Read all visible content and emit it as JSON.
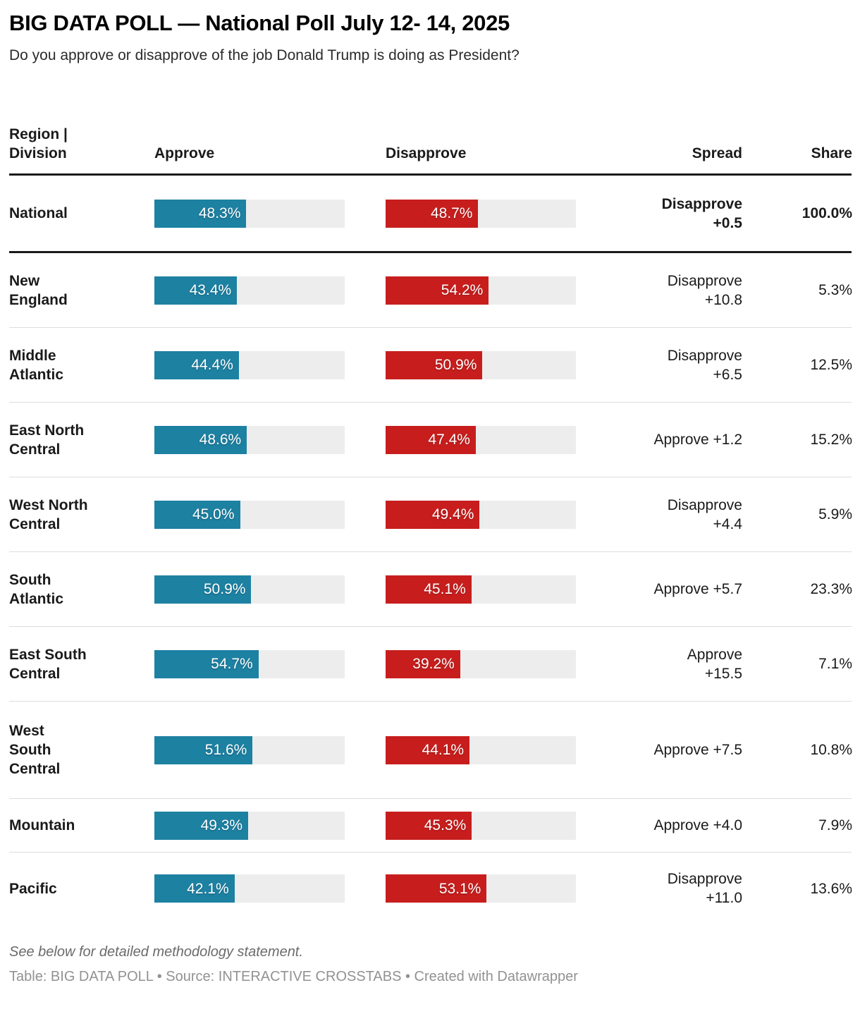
{
  "header": {
    "title": "BIG DATA POLL — National Poll July 12- 14, 2025",
    "subtitle": "Do you approve or disapprove of the job Donald Trump is doing as President?"
  },
  "colors": {
    "approve": "#1d81a2",
    "disapprove": "#c71e1d",
    "bar-track": "#ededed",
    "divider": "#dddddd",
    "rule": "#1a1a1a",
    "text": "#1a1a1a",
    "muted": "#6b6b6b",
    "source": "#929292"
  },
  "table": {
    "columns": [
      "Region |\nDivision",
      "Approve",
      "Disapprove",
      "Spread",
      "Share"
    ],
    "rows": [
      {
        "label": "National",
        "approve_pct": 48.3,
        "approve_text": "48.3%",
        "disapprove_pct": 48.7,
        "disapprove_text": "48.7%",
        "spread": "Disapprove\n+0.5",
        "share": "100.0%"
      },
      {
        "label": "New\nEngland",
        "approve_pct": 43.4,
        "approve_text": "43.4%",
        "disapprove_pct": 54.2,
        "disapprove_text": "54.2%",
        "spread": "Disapprove\n+10.8",
        "share": "5.3%"
      },
      {
        "label": "Middle\nAtlantic",
        "approve_pct": 44.4,
        "approve_text": "44.4%",
        "disapprove_pct": 50.9,
        "disapprove_text": "50.9%",
        "spread": "Disapprove\n+6.5",
        "share": "12.5%"
      },
      {
        "label": "East North\nCentral",
        "approve_pct": 48.6,
        "approve_text": "48.6%",
        "disapprove_pct": 47.4,
        "disapprove_text": "47.4%",
        "spread": "Approve +1.2",
        "share": "15.2%"
      },
      {
        "label": "West North\nCentral",
        "approve_pct": 45.0,
        "approve_text": "45.0%",
        "disapprove_pct": 49.4,
        "disapprove_text": "49.4%",
        "spread": "Disapprove\n+4.4",
        "share": "5.9%"
      },
      {
        "label": "South\nAtlantic",
        "approve_pct": 50.9,
        "approve_text": "50.9%",
        "disapprove_pct": 45.1,
        "disapprove_text": "45.1%",
        "spread": "Approve +5.7",
        "share": "23.3%"
      },
      {
        "label": "East South\nCentral",
        "approve_pct": 54.7,
        "approve_text": "54.7%",
        "disapprove_pct": 39.2,
        "disapprove_text": "39.2%",
        "spread": "Approve\n+15.5",
        "share": "7.1%"
      },
      {
        "label": "West\nSouth\nCentral",
        "approve_pct": 51.6,
        "approve_text": "51.6%",
        "disapprove_pct": 44.1,
        "disapprove_text": "44.1%",
        "spread": "Approve +7.5",
        "share": "10.8%"
      },
      {
        "label": "Mountain",
        "approve_pct": 49.3,
        "approve_text": "49.3%",
        "disapprove_pct": 45.3,
        "disapprove_text": "45.3%",
        "spread": "Approve +4.0",
        "share": "7.9%"
      },
      {
        "label": "Pacific",
        "approve_pct": 42.1,
        "approve_text": "42.1%",
        "disapprove_pct": 53.1,
        "disapprove_text": "53.1%",
        "spread": "Disapprove\n+11.0",
        "share": "13.6%"
      }
    ]
  },
  "footer": {
    "methodology": "See below for detailed methodology statement.",
    "source": "Table: BIG DATA POLL • Source: INTERACTIVE CROSSTABS • Created with Datawrapper"
  },
  "chart_data": {
    "type": "table",
    "title": "BIG DATA POLL — National Poll July 12- 14, 2025",
    "subtitle": "Do you approve or disapprove of the job Donald Trump is doing as President?",
    "categories": [
      "National",
      "New England",
      "Middle Atlantic",
      "East North Central",
      "West North Central",
      "South Atlantic",
      "East South Central",
      "West South Central",
      "Mountain",
      "Pacific"
    ],
    "series": [
      {
        "name": "Approve",
        "values": [
          48.3,
          43.4,
          44.4,
          48.6,
          45.0,
          50.9,
          54.7,
          51.6,
          49.3,
          42.1
        ]
      },
      {
        "name": "Disapprove",
        "values": [
          48.7,
          54.2,
          50.9,
          47.4,
          49.4,
          45.1,
          39.2,
          44.1,
          45.3,
          53.1
        ]
      },
      {
        "name": "Spread",
        "values": [
          "Disapprove +0.5",
          "Disapprove +10.8",
          "Disapprove +6.5",
          "Approve +1.2",
          "Disapprove +4.4",
          "Approve +5.7",
          "Approve +15.5",
          "Approve +7.5",
          "Approve +4.0",
          "Disapprove +11.0"
        ]
      },
      {
        "name": "Share",
        "values": [
          100.0,
          5.3,
          12.5,
          15.2,
          5.9,
          23.3,
          7.1,
          10.8,
          7.9,
          13.6
        ]
      }
    ],
    "bar_scale_max": 100,
    "bar_colors": {
      "Approve": "#1d81a2",
      "Disapprove": "#c71e1d"
    }
  }
}
